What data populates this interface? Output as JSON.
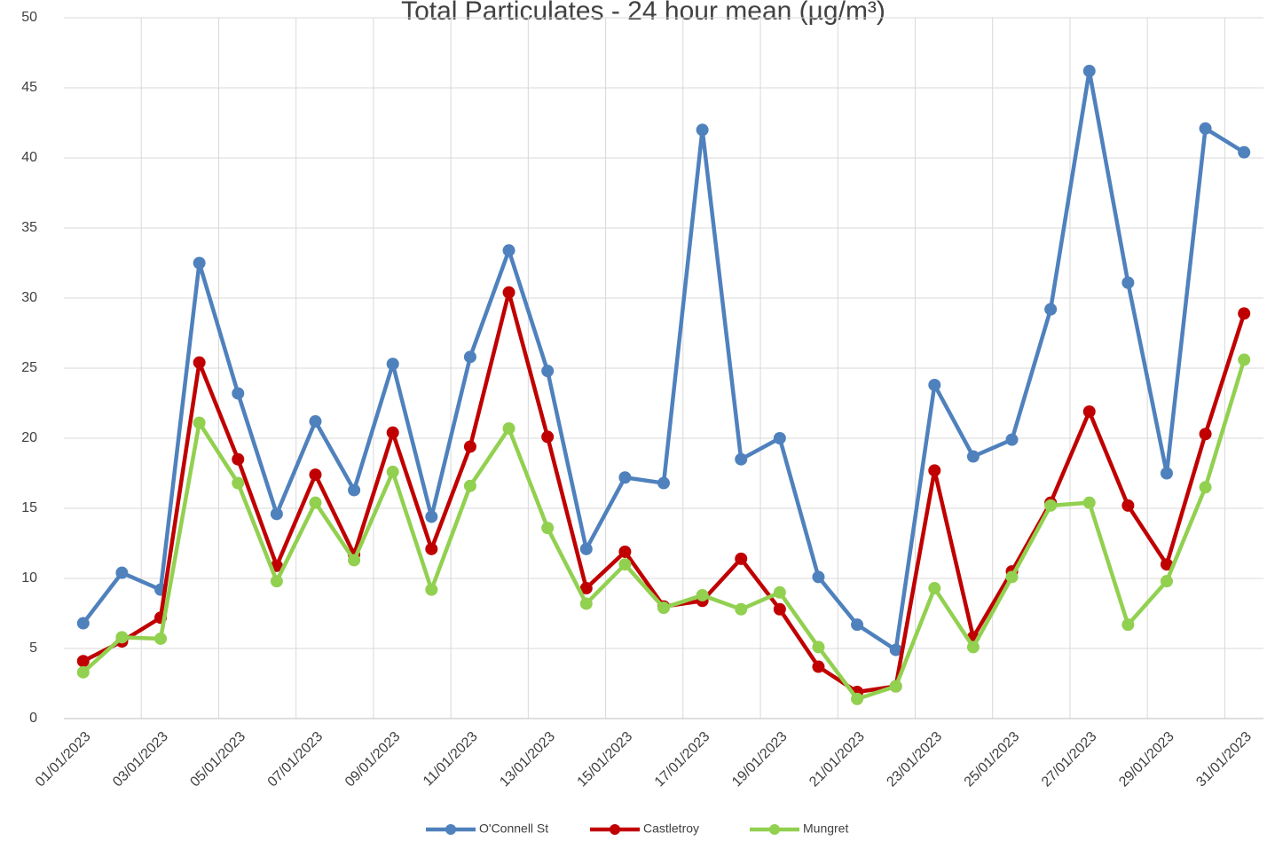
{
  "chart_data": {
    "type": "line",
    "title": "Total Particulates - 24 hour mean (µg/m³)",
    "categories": [
      "01/01/2023",
      null,
      "03/01/2023",
      null,
      "05/01/2023",
      null,
      "07/01/2023",
      null,
      "09/01/2023",
      null,
      "11/01/2023",
      null,
      "13/01/2023",
      null,
      "15/01/2023",
      null,
      "17/01/2023",
      null,
      "19/01/2023",
      null,
      "21/01/2023",
      null,
      "23/01/2023",
      null,
      "25/01/2023",
      null,
      "27/01/2023",
      null,
      "29/01/2023",
      null,
      "31/01/2023"
    ],
    "series": [
      {
        "name": "O'Connell St",
        "color": "#4f81bd",
        "values": [
          6.8,
          10.4,
          9.2,
          32.5,
          23.2,
          14.6,
          21.2,
          16.3,
          25.3,
          14.4,
          25.8,
          33.4,
          24.8,
          12.1,
          17.2,
          16.8,
          42.0,
          18.5,
          20.0,
          10.1,
          6.7,
          4.9,
          23.8,
          18.7,
          19.9,
          29.2,
          46.2,
          31.1,
          17.5,
          42.1,
          40.4
        ]
      },
      {
        "name": "Castletroy",
        "color": "#c00000",
        "values": [
          4.1,
          5.5,
          7.2,
          25.4,
          18.5,
          10.9,
          17.4,
          11.7,
          20.4,
          12.1,
          19.4,
          30.4,
          20.1,
          9.3,
          11.9,
          8.0,
          8.4,
          11.4,
          7.8,
          3.7,
          1.9,
          2.3,
          17.7,
          5.8,
          10.5,
          15.4,
          21.9,
          15.2,
          11.0,
          20.3,
          28.9
        ]
      },
      {
        "name": "Mungret",
        "color": "#92d050",
        "values": [
          3.3,
          5.8,
          5.7,
          21.1,
          16.8,
          9.8,
          15.4,
          11.3,
          17.6,
          9.2,
          16.6,
          20.7,
          13.6,
          8.2,
          11.0,
          7.9,
          8.8,
          7.8,
          9.0,
          5.1,
          1.4,
          2.3,
          9.3,
          5.1,
          10.1,
          15.2,
          15.4,
          6.7,
          9.8,
          16.5,
          25.6
        ]
      }
    ],
    "ylim": [
      0,
      50
    ],
    "yticks": [
      0,
      5,
      10,
      15,
      20,
      25,
      30,
      35,
      40,
      45,
      50
    ],
    "grid": true,
    "legend": "bottom"
  }
}
